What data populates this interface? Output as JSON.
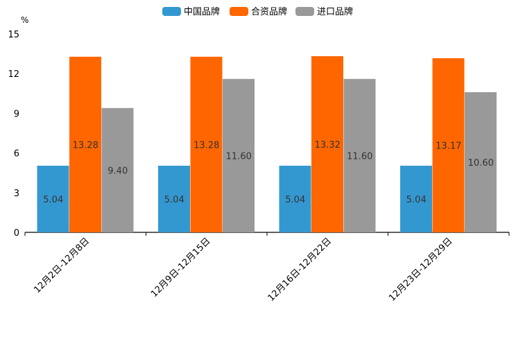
{
  "chart_data": {
    "type": "bar",
    "title": "",
    "xlabel": "",
    "ylabel": "",
    "y_unit": "%",
    "ylim": [
      0,
      15
    ],
    "yticks": [
      0,
      3,
      6,
      9,
      12,
      15
    ],
    "categories": [
      "12月2日-12月8日",
      "12月9日-12月15日",
      "12月16日-12月22日",
      "12月23日-12月29日"
    ],
    "series": [
      {
        "name": "中国品牌",
        "color": "#3498d0",
        "values": [
          5.04,
          5.04,
          5.04,
          5.04
        ],
        "labels": [
          "5.04",
          "5.04",
          "5.04",
          "5.04"
        ]
      },
      {
        "name": "合资品牌",
        "color": "#ff6600",
        "values": [
          13.28,
          13.28,
          13.32,
          13.17
        ],
        "labels": [
          "13.28",
          "13.28",
          "13.32",
          "13.17"
        ]
      },
      {
        "name": "进口品牌",
        "color": "#999999",
        "values": [
          9.4,
          11.6,
          11.6,
          10.6
        ],
        "labels": [
          "9.40",
          "11.60",
          "11.60",
          "10.60"
        ]
      }
    ],
    "legend_position": "top-center",
    "grid": false
  }
}
